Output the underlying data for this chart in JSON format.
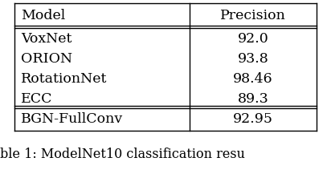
{
  "header": [
    "Model",
    "Precision"
  ],
  "rows": [
    [
      "VoxNet",
      "92.0"
    ],
    [
      "ORION",
      "93.8"
    ],
    [
      "RotationNet",
      "98.46"
    ],
    [
      "ECC",
      "89.3"
    ]
  ],
  "last_row": [
    "BGN-FullConv",
    "92.95"
  ],
  "caption": "ble 1: ModelNet10 classification resu",
  "bg_color": "#ffffff",
  "text_color": "#000000",
  "font_size": 12.5,
  "caption_font_size": 11.5,
  "fig_width": 4.12,
  "fig_height": 2.28,
  "dpi": 100
}
